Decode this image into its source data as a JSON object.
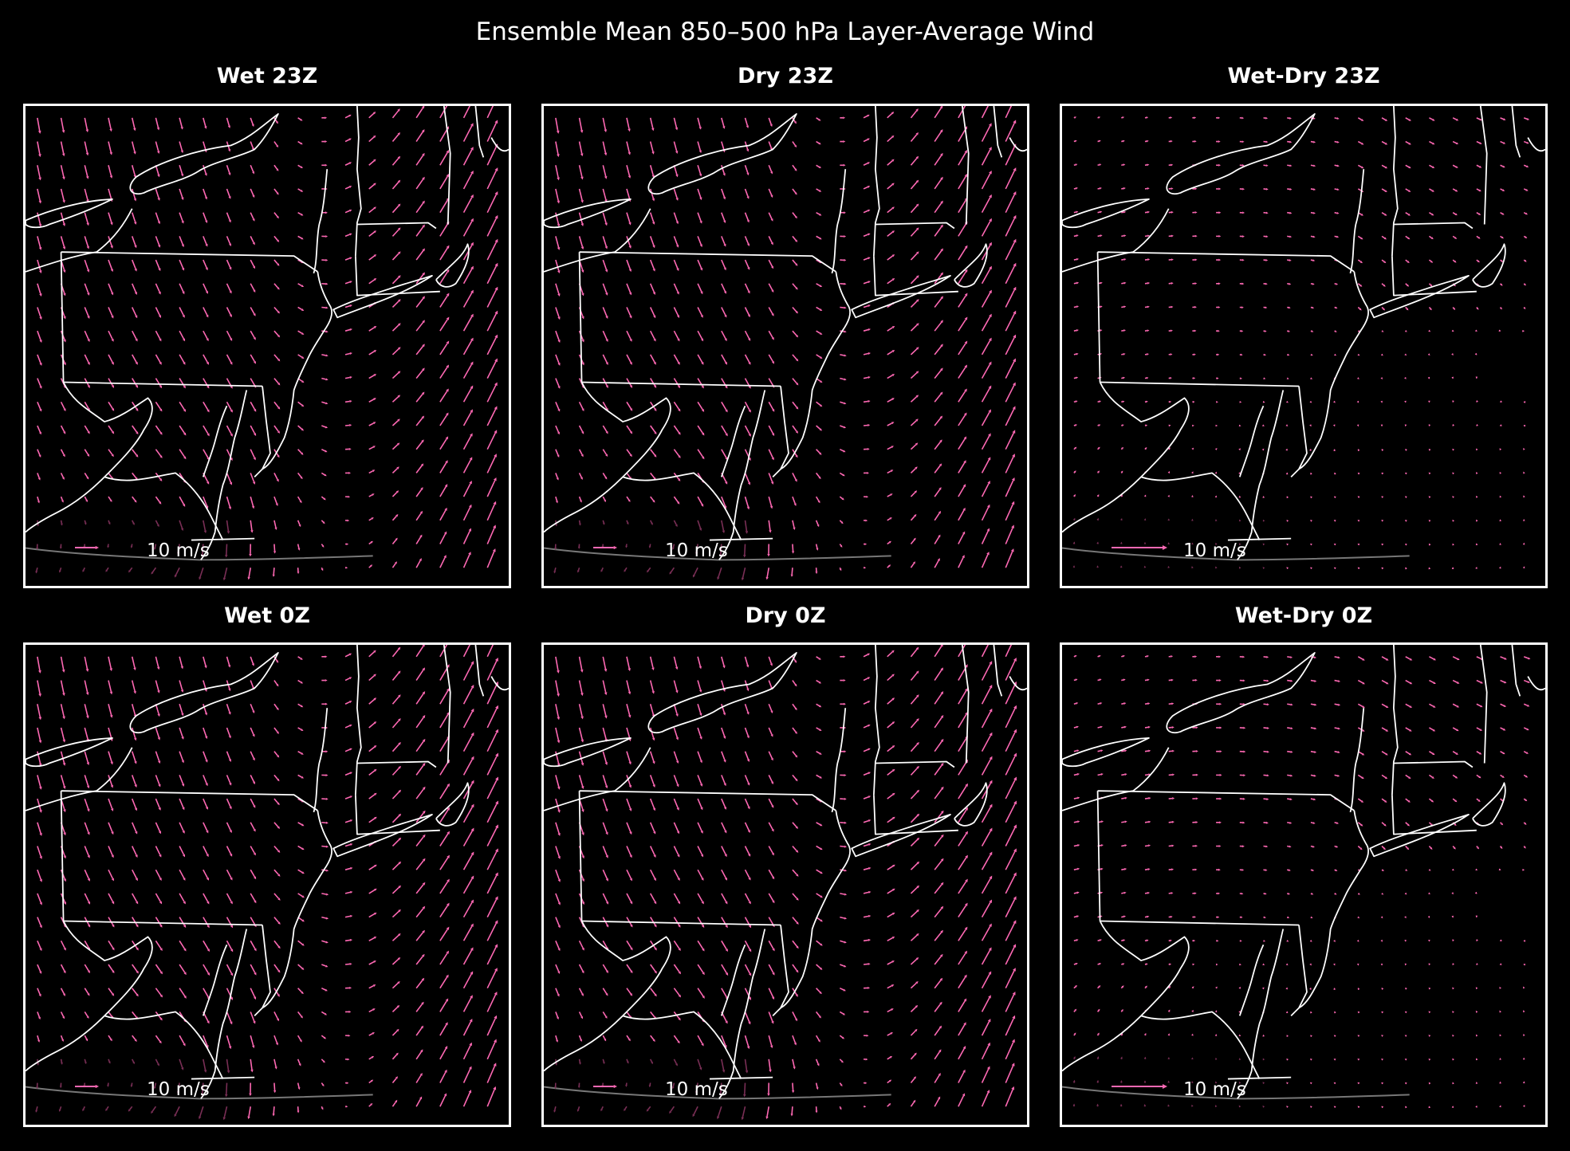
{
  "figure": {
    "title": "Ensemble Mean 850–500 hPa Layer-Average Wind"
  },
  "style": {
    "background": "#000000",
    "map_lines": "#ffffff",
    "arrow_color": "#ff69b4",
    "faded_arrow_color": "#7a2f56",
    "track_line_color": "#777777"
  },
  "quiver_key": {
    "label": "10 m/s",
    "speed_ms": 10
  },
  "panels": [
    {
      "id": "wet-23z",
      "title": "Wet 23Z",
      "kind": "field",
      "row": 0,
      "col": 0,
      "scale": 1.0
    },
    {
      "id": "dry-23z",
      "title": "Dry 23Z",
      "kind": "field",
      "row": 0,
      "col": 1,
      "scale": 1.0
    },
    {
      "id": "diff-23z",
      "title": "Wet-Dry 23Z",
      "kind": "diff",
      "row": 0,
      "col": 2,
      "scale": 1.0
    },
    {
      "id": "wet-0z",
      "title": "Wet 0Z",
      "kind": "field",
      "row": 1,
      "col": 0,
      "scale": 1.05
    },
    {
      "id": "dry-0z",
      "title": "Dry 0Z",
      "kind": "field",
      "row": 1,
      "col": 1,
      "scale": 1.05
    },
    {
      "id": "diff-0z",
      "title": "Wet-Dry 0Z",
      "kind": "diff",
      "row": 1,
      "col": 2,
      "scale": 1.2
    }
  ]
}
